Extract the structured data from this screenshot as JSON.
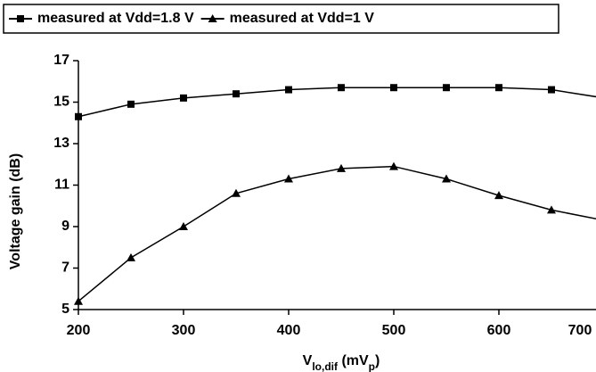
{
  "chart_data": {
    "type": "line",
    "xlabel": [
      "V",
      "lo,dif",
      " (mV",
      "p",
      ")"
    ],
    "ylabel": "Voltage gain (dB)",
    "x": [
      200,
      250,
      300,
      350,
      400,
      450,
      500,
      550,
      600,
      650,
      700
    ],
    "series": [
      {
        "name": "measured at Vdd=1.8 V",
        "color": "#000000",
        "marker": "square",
        "values": [
          14.3,
          14.9,
          15.2,
          15.4,
          15.6,
          15.7,
          15.7,
          15.7,
          15.7,
          15.6,
          15.2
        ]
      },
      {
        "name": "measured at Vdd=1 V",
        "color": "#000000",
        "marker": "triangle",
        "values": [
          5.4,
          7.5,
          9.0,
          10.6,
          11.3,
          11.8,
          11.9,
          11.3,
          10.5,
          9.8,
          9.3
        ]
      }
    ],
    "xlim": [
      200,
      700
    ],
    "xticks": [
      200,
      300,
      400,
      500,
      600,
      700
    ],
    "ylim": [
      5,
      17
    ],
    "yticks": [
      5,
      7,
      9,
      11,
      13,
      15,
      17
    ],
    "grid": false,
    "legend": "top"
  }
}
